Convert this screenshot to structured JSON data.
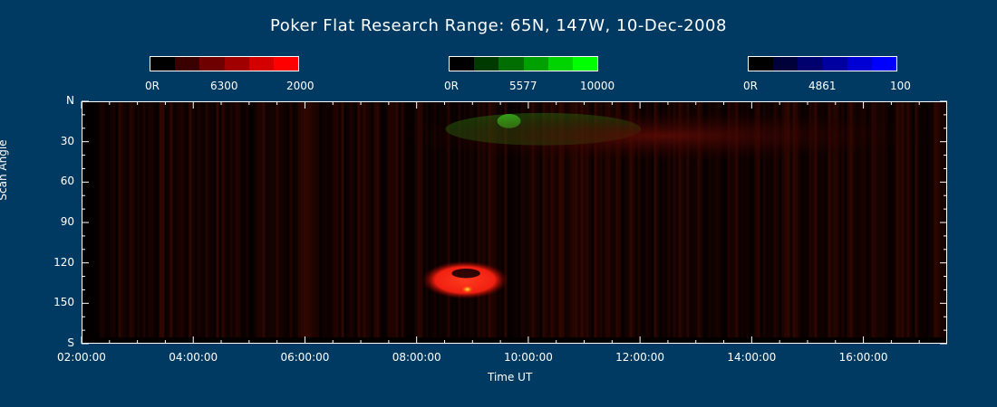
{
  "title": "Poker Flat Research Range: 65N, 147W, 10-Dec-2008",
  "colorbars": [
    {
      "name": "red",
      "left_label": "0R",
      "mid_label": "6300",
      "right_label": "2000",
      "colors": [
        "#000000",
        "#3a0000",
        "#6e0000",
        "#a00000",
        "#d40000",
        "#ff0000"
      ]
    },
    {
      "name": "green",
      "left_label": "0R",
      "mid_label": "5577",
      "right_label": "10000",
      "colors": [
        "#000000",
        "#003a00",
        "#006e00",
        "#00a000",
        "#00d400",
        "#00ff00"
      ]
    },
    {
      "name": "blue",
      "left_label": "0R",
      "mid_label": "4861",
      "right_label": "100",
      "colors": [
        "#000000",
        "#00003a",
        "#00006e",
        "#0000a0",
        "#0000d4",
        "#0000ff"
      ]
    }
  ],
  "chart_data": {
    "type": "heatmap",
    "title": "Poker Flat Research Range: 65N, 147W, 10-Dec-2008",
    "xlabel": "Time UT",
    "ylabel": "Scan Angle",
    "x_ticks": [
      "02:00:00",
      "04:00:00",
      "06:00:00",
      "08:00:00",
      "10:00:00",
      "12:00:00",
      "14:00:00",
      "16:00:00"
    ],
    "y_ticks": [
      "N",
      "30",
      "60",
      "90",
      "120",
      "150",
      "S"
    ],
    "ylim": [
      0,
      180
    ],
    "xlim_hours": [
      2.0,
      17.5
    ],
    "features": [
      {
        "name": "red emission patch",
        "time_start_h": 8.0,
        "time_end_h": 9.7,
        "angle_start": 118,
        "angle_end": 146,
        "channel": "6300"
      },
      {
        "name": "green emission band",
        "time_start_h": 8.5,
        "time_end_h": 12.0,
        "angle_start": 5,
        "angle_end": 35,
        "channel": "5577"
      },
      {
        "name": "red northern band",
        "time_start_h": 7.5,
        "time_end_h": 17.2,
        "angle_start": 5,
        "angle_end": 45,
        "channel": "6300"
      }
    ]
  }
}
